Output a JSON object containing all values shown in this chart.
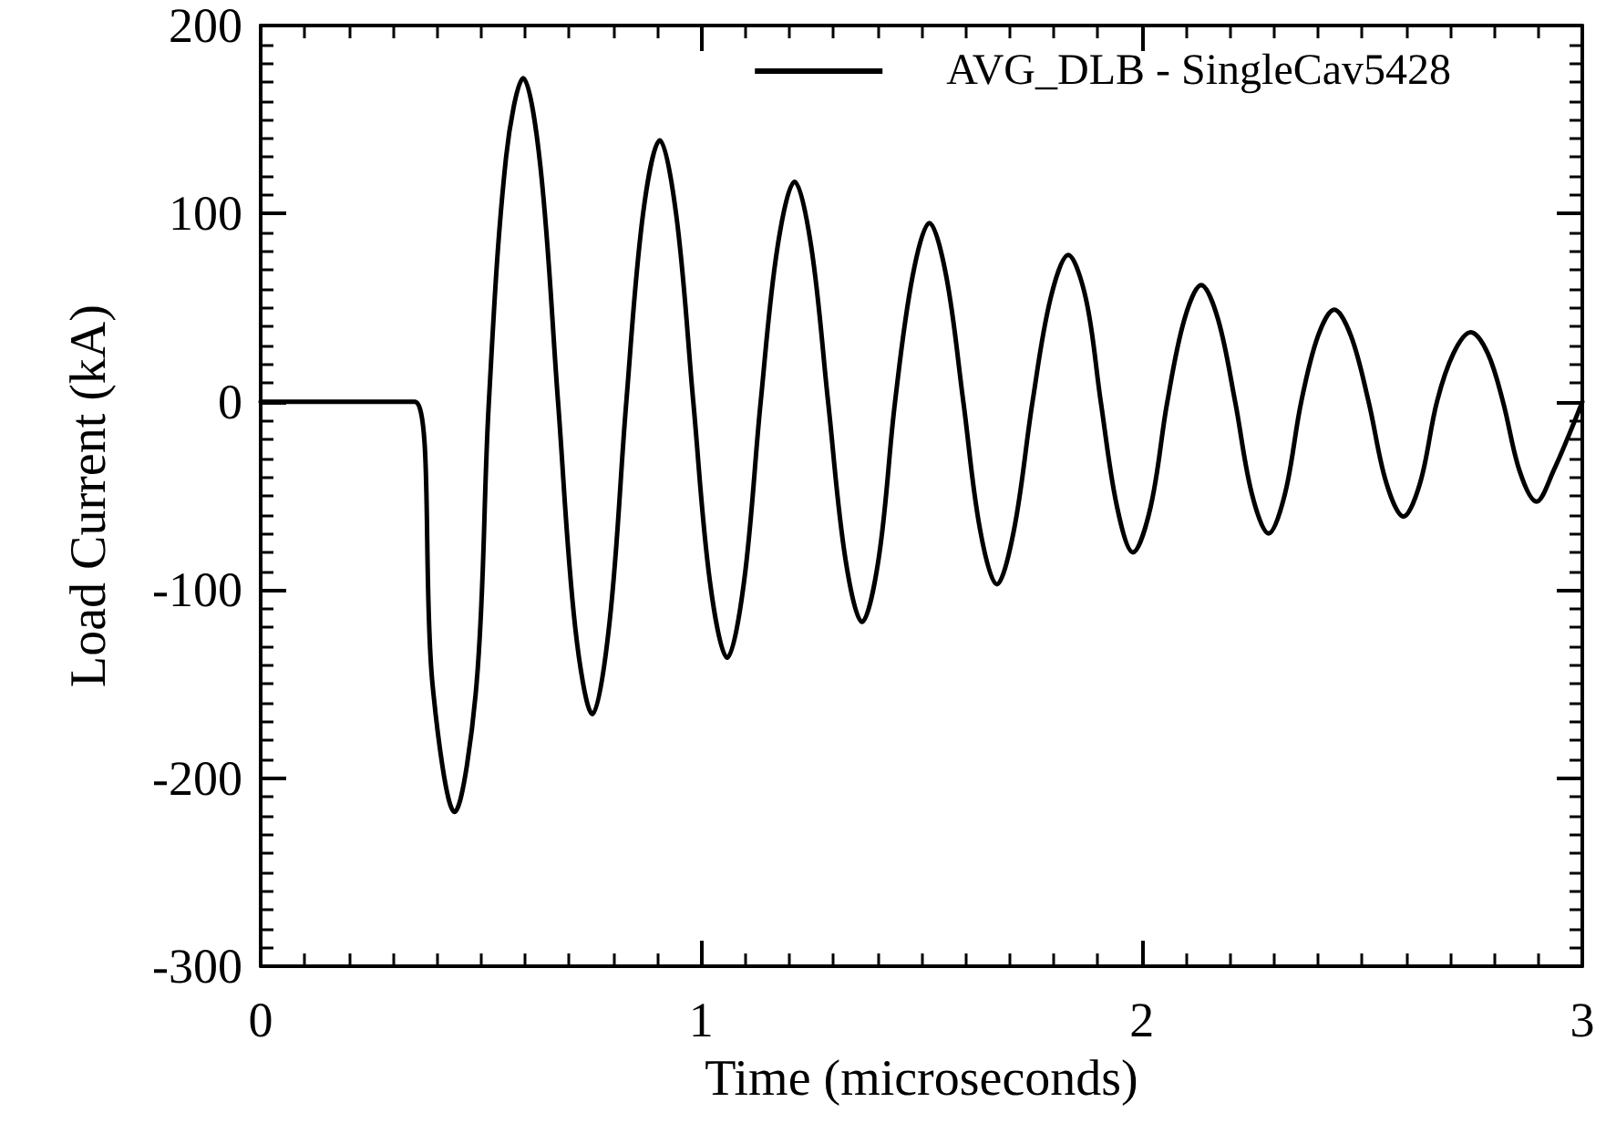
{
  "chart_data": {
    "type": "line",
    "xlabel": "Time (microseconds)",
    "ylabel": "Load Current (kA)",
    "xlim": [
      0,
      3
    ],
    "xticks": [
      0,
      1,
      2,
      3
    ],
    "ylim": [
      -300,
      200
    ],
    "yticks": [
      -300,
      -200,
      -100,
      0,
      100,
      200
    ],
    "grid": false,
    "legend": "top right",
    "marker": "none",
    "line_style": "solid",
    "series": [
      {
        "name": "AVG_DLB - SingleCav5428",
        "color": "#000000",
        "x": [
          0,
          0.1,
          0.2,
          0.35,
          0.39,
          0.44,
          0.49,
          0.518,
          0.557,
          0.596,
          0.635,
          0.675,
          0.714,
          0.753,
          0.792,
          0.83,
          0.868,
          0.906,
          0.944,
          0.982,
          1.02,
          1.059,
          1.097,
          1.135,
          1.173,
          1.212,
          1.25,
          1.288,
          1.327,
          1.365,
          1.403,
          1.44,
          1.48,
          1.518,
          1.556,
          1.595,
          1.633,
          1.671,
          1.71,
          1.752,
          1.793,
          1.833,
          1.873,
          1.907,
          1.944,
          1.98,
          2.02,
          2.058,
          2.097,
          2.135,
          2.173,
          2.212,
          2.25,
          2.288,
          2.325,
          2.362,
          2.4,
          2.437,
          2.475,
          2.515,
          2.555,
          2.594,
          2.632,
          2.67,
          2.708,
          2.747,
          2.785,
          2.82,
          2.858,
          2.896,
          2.934,
          3
        ],
        "values": [
          0,
          0,
          0,
          0,
          -150,
          -218,
          -150,
          0,
          130,
          172,
          125,
          0,
          -120,
          -166,
          -117,
          0,
          100,
          139,
          98,
          0,
          -96,
          -136,
          -96,
          0,
          82,
          117,
          82,
          0,
          -83,
          -117,
          -83,
          0,
          67,
          95,
          67,
          0,
          -68,
          -97,
          -68,
          0,
          55,
          78,
          55,
          0,
          -56,
          -80,
          -56,
          0,
          44,
          62,
          44,
          0,
          -49,
          -70,
          -49,
          0,
          35,
          49,
          35,
          0,
          -43,
          -61,
          -43,
          0,
          26,
          37,
          26,
          0,
          -37,
          -53,
          -37,
          0
        ]
      }
    ]
  }
}
